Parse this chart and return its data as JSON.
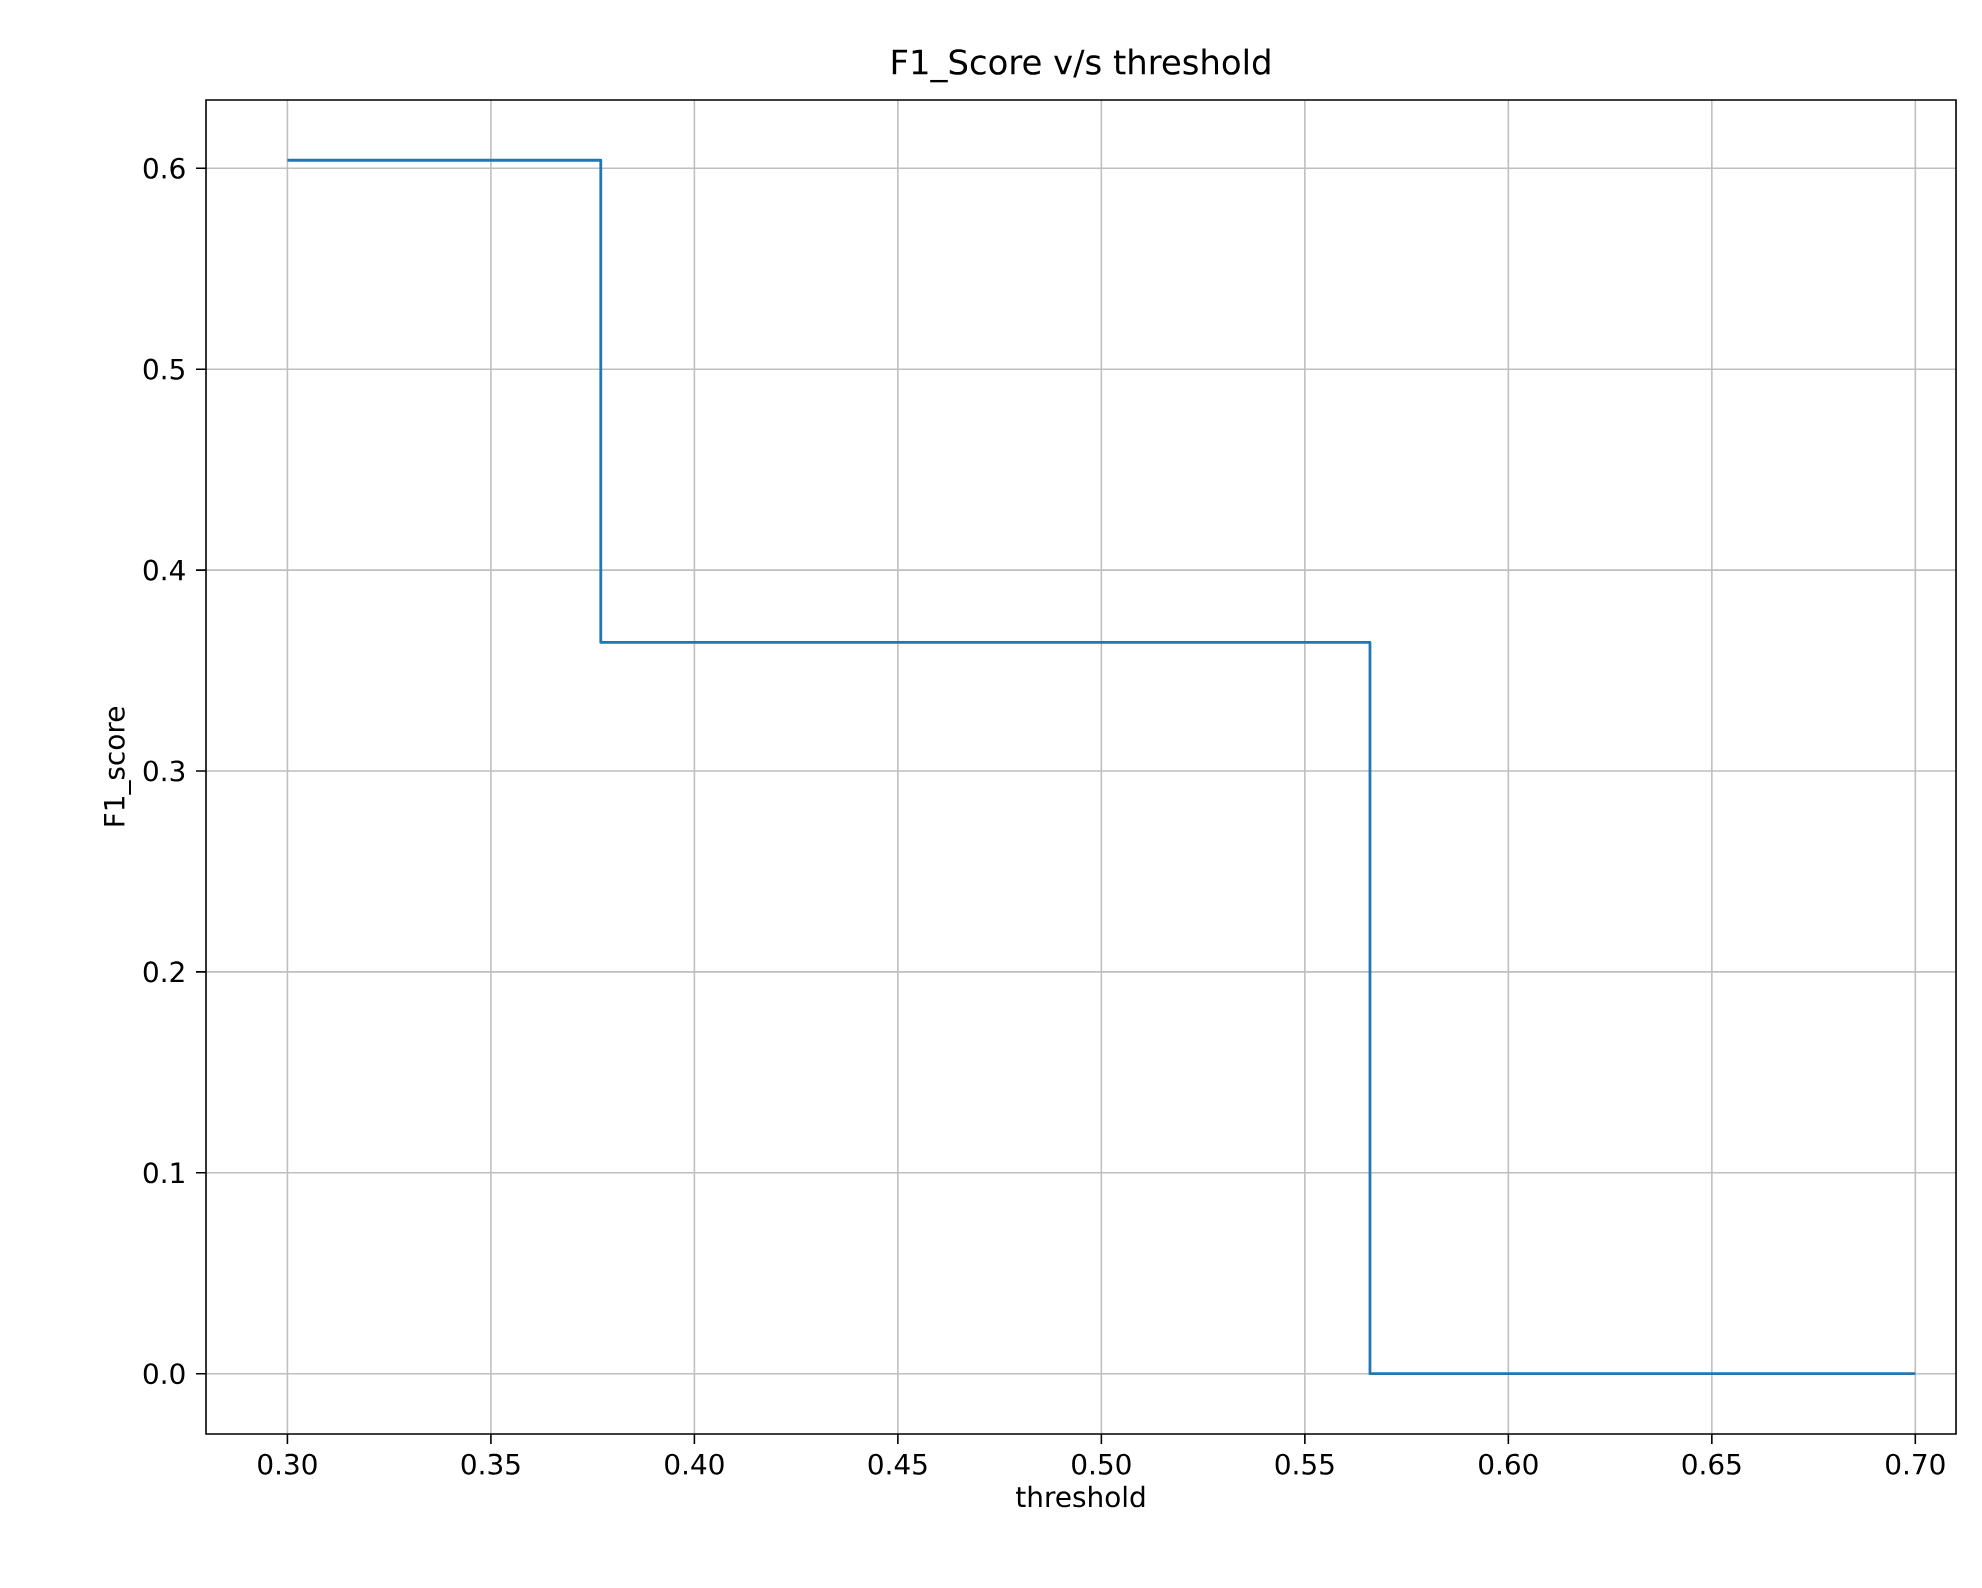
{
  "chart_data": {
    "type": "step",
    "title": "F1_Score v/s threshold",
    "xlabel": "threshold",
    "ylabel": "F1_score",
    "x": [
      0.3,
      0.377,
      0.566,
      0.7
    ],
    "series": [
      {
        "color": "#1f77b4",
        "values": [
          0.604,
          0.364,
          0.0,
          0.0
        ]
      }
    ],
    "xlim": [
      0.28,
      0.71
    ],
    "ylim": [
      -0.03,
      0.634
    ],
    "xticks": [
      {
        "value": 0.3,
        "label": "0.30"
      },
      {
        "value": 0.35,
        "label": "0.35"
      },
      {
        "value": 0.4,
        "label": "0.40"
      },
      {
        "value": 0.45,
        "label": "0.45"
      },
      {
        "value": 0.5,
        "label": "0.50"
      },
      {
        "value": 0.55,
        "label": "0.55"
      },
      {
        "value": 0.6,
        "label": "0.60"
      },
      {
        "value": 0.65,
        "label": "0.65"
      },
      {
        "value": 0.7,
        "label": "0.70"
      }
    ],
    "yticks": [
      {
        "value": 0.0,
        "label": "0.0"
      },
      {
        "value": 0.1,
        "label": "0.1"
      },
      {
        "value": 0.2,
        "label": "0.2"
      },
      {
        "value": 0.3,
        "label": "0.3"
      },
      {
        "value": 0.4,
        "label": "0.4"
      },
      {
        "value": 0.5,
        "label": "0.5"
      },
      {
        "value": 0.6,
        "label": "0.6"
      }
    ],
    "grid": true
  }
}
